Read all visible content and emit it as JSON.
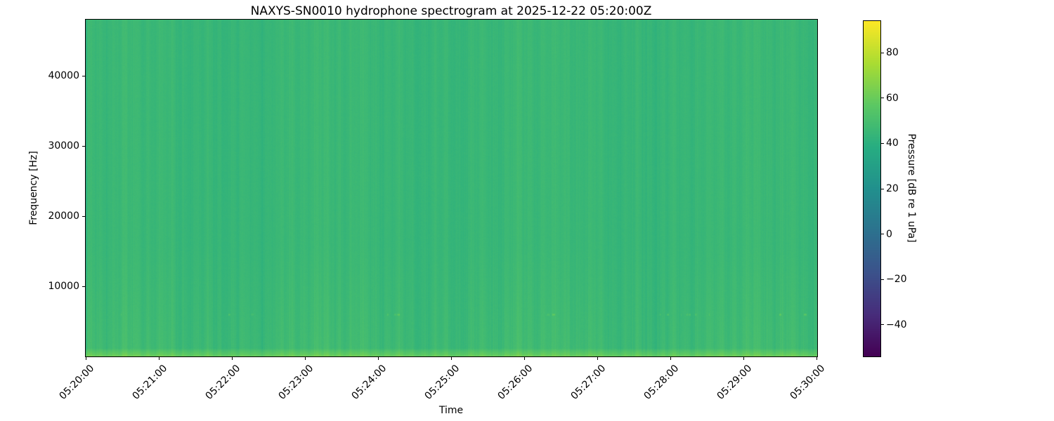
{
  "chart_data": {
    "type": "heatmap",
    "subtype": "spectrogram",
    "title": "NAXYS-SN0010 hydrophone spectrogram at 2025-12-22 05:20:00Z",
    "xlabel": "Time",
    "ylabel": "Frequency [Hz]",
    "grid": false,
    "x": {
      "tick_labels": [
        "05:20:00",
        "05:21:00",
        "05:22:00",
        "05:23:00",
        "05:24:00",
        "05:25:00",
        "05:26:00",
        "05:27:00",
        "05:28:00",
        "05:29:00",
        "05:30:00"
      ],
      "start": "05:20:00",
      "end": "05:30:00",
      "span_minutes": 10
    },
    "y": {
      "ticks_hz": [
        10000,
        20000,
        30000,
        40000
      ],
      "tick_labels": [
        "10000",
        "20000",
        "30000",
        "40000"
      ],
      "range_hz": [
        0,
        48000
      ]
    },
    "colorbar": {
      "label": "Pressure [dB re 1 uPa]",
      "ticks_db": [
        80,
        60,
        40,
        20,
        0,
        -20,
        -40
      ],
      "tick_labels": [
        "80",
        "60",
        "40",
        "20",
        "0",
        "−20",
        "−40"
      ],
      "vmin_db": -54,
      "vmax_db": 94,
      "colormap": "viridis",
      "position": "right"
    },
    "content": {
      "description": "Near-uniform broadband ocean-noise field around 45 dB (mid-green in viridis) with faint vertical striations over the full band; slightly brighter below ~16 kHz; a strong bright yellow-green band below ~1.2 kHz at the bottom edge; intermittent small bright tonal bursts near 6 kHz.",
      "background_level_db": 45,
      "low_band": {
        "freq_below_hz": 16000,
        "extra_db": 2
      },
      "surface_band": {
        "freq_below_hz": 1200,
        "extra_db": 14
      },
      "tonal_line": {
        "freq_hz": 6000,
        "half_width_hz": 220,
        "burst_extra_db_max": 14,
        "burst_probability": 0.022
      },
      "vertical_striation_db": 3,
      "seed": 42
    }
  }
}
